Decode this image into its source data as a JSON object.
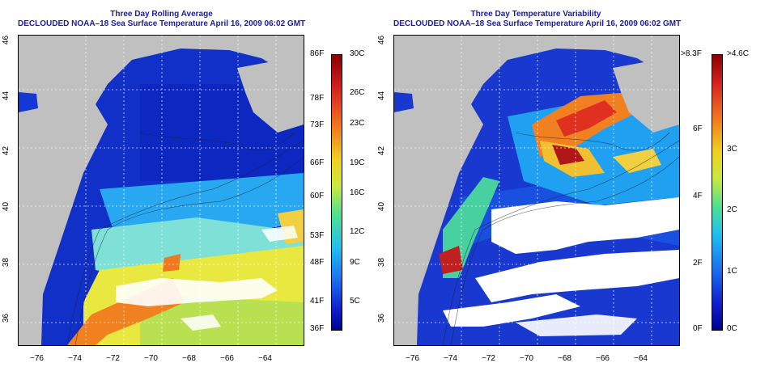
{
  "left_panel": {
    "title_line1": "Three Day Rolling Average",
    "title_line2": "DECLOUDED NOAA–18 Sea Surface Temperature April 16, 2009 06:02 GMT",
    "colorbar_f": [
      "86F",
      "78F",
      "73F",
      "66F",
      "60F",
      "53F",
      "48F",
      "41F",
      "36F"
    ],
    "colorbar_c": [
      "30C",
      "26C",
      "23C",
      "19C",
      "16C",
      "12C",
      "9C",
      "5C"
    ]
  },
  "right_panel": {
    "title_line1": "Three Day Temperature Variability",
    "title_line2": "DECLOUDED NOAA–18 Sea Surface Temperature April 16, 2009 06:02 GMT",
    "colorbar_f": [
      ">8.3F",
      "6F",
      "4F",
      "2F",
      "0F"
    ],
    "colorbar_c": [
      ">4.6C",
      "3C",
      "2C",
      "1C",
      "0C"
    ]
  },
  "axes": {
    "lon_ticks": [
      "−76",
      "−74",
      "−72",
      "−70",
      "−68",
      "−66",
      "−64"
    ],
    "lat_ticks": [
      "46",
      "44",
      "42",
      "40",
      "38",
      "36"
    ]
  },
  "colors": {
    "land": "#c0c0c0",
    "title": "#1a1aa8"
  }
}
